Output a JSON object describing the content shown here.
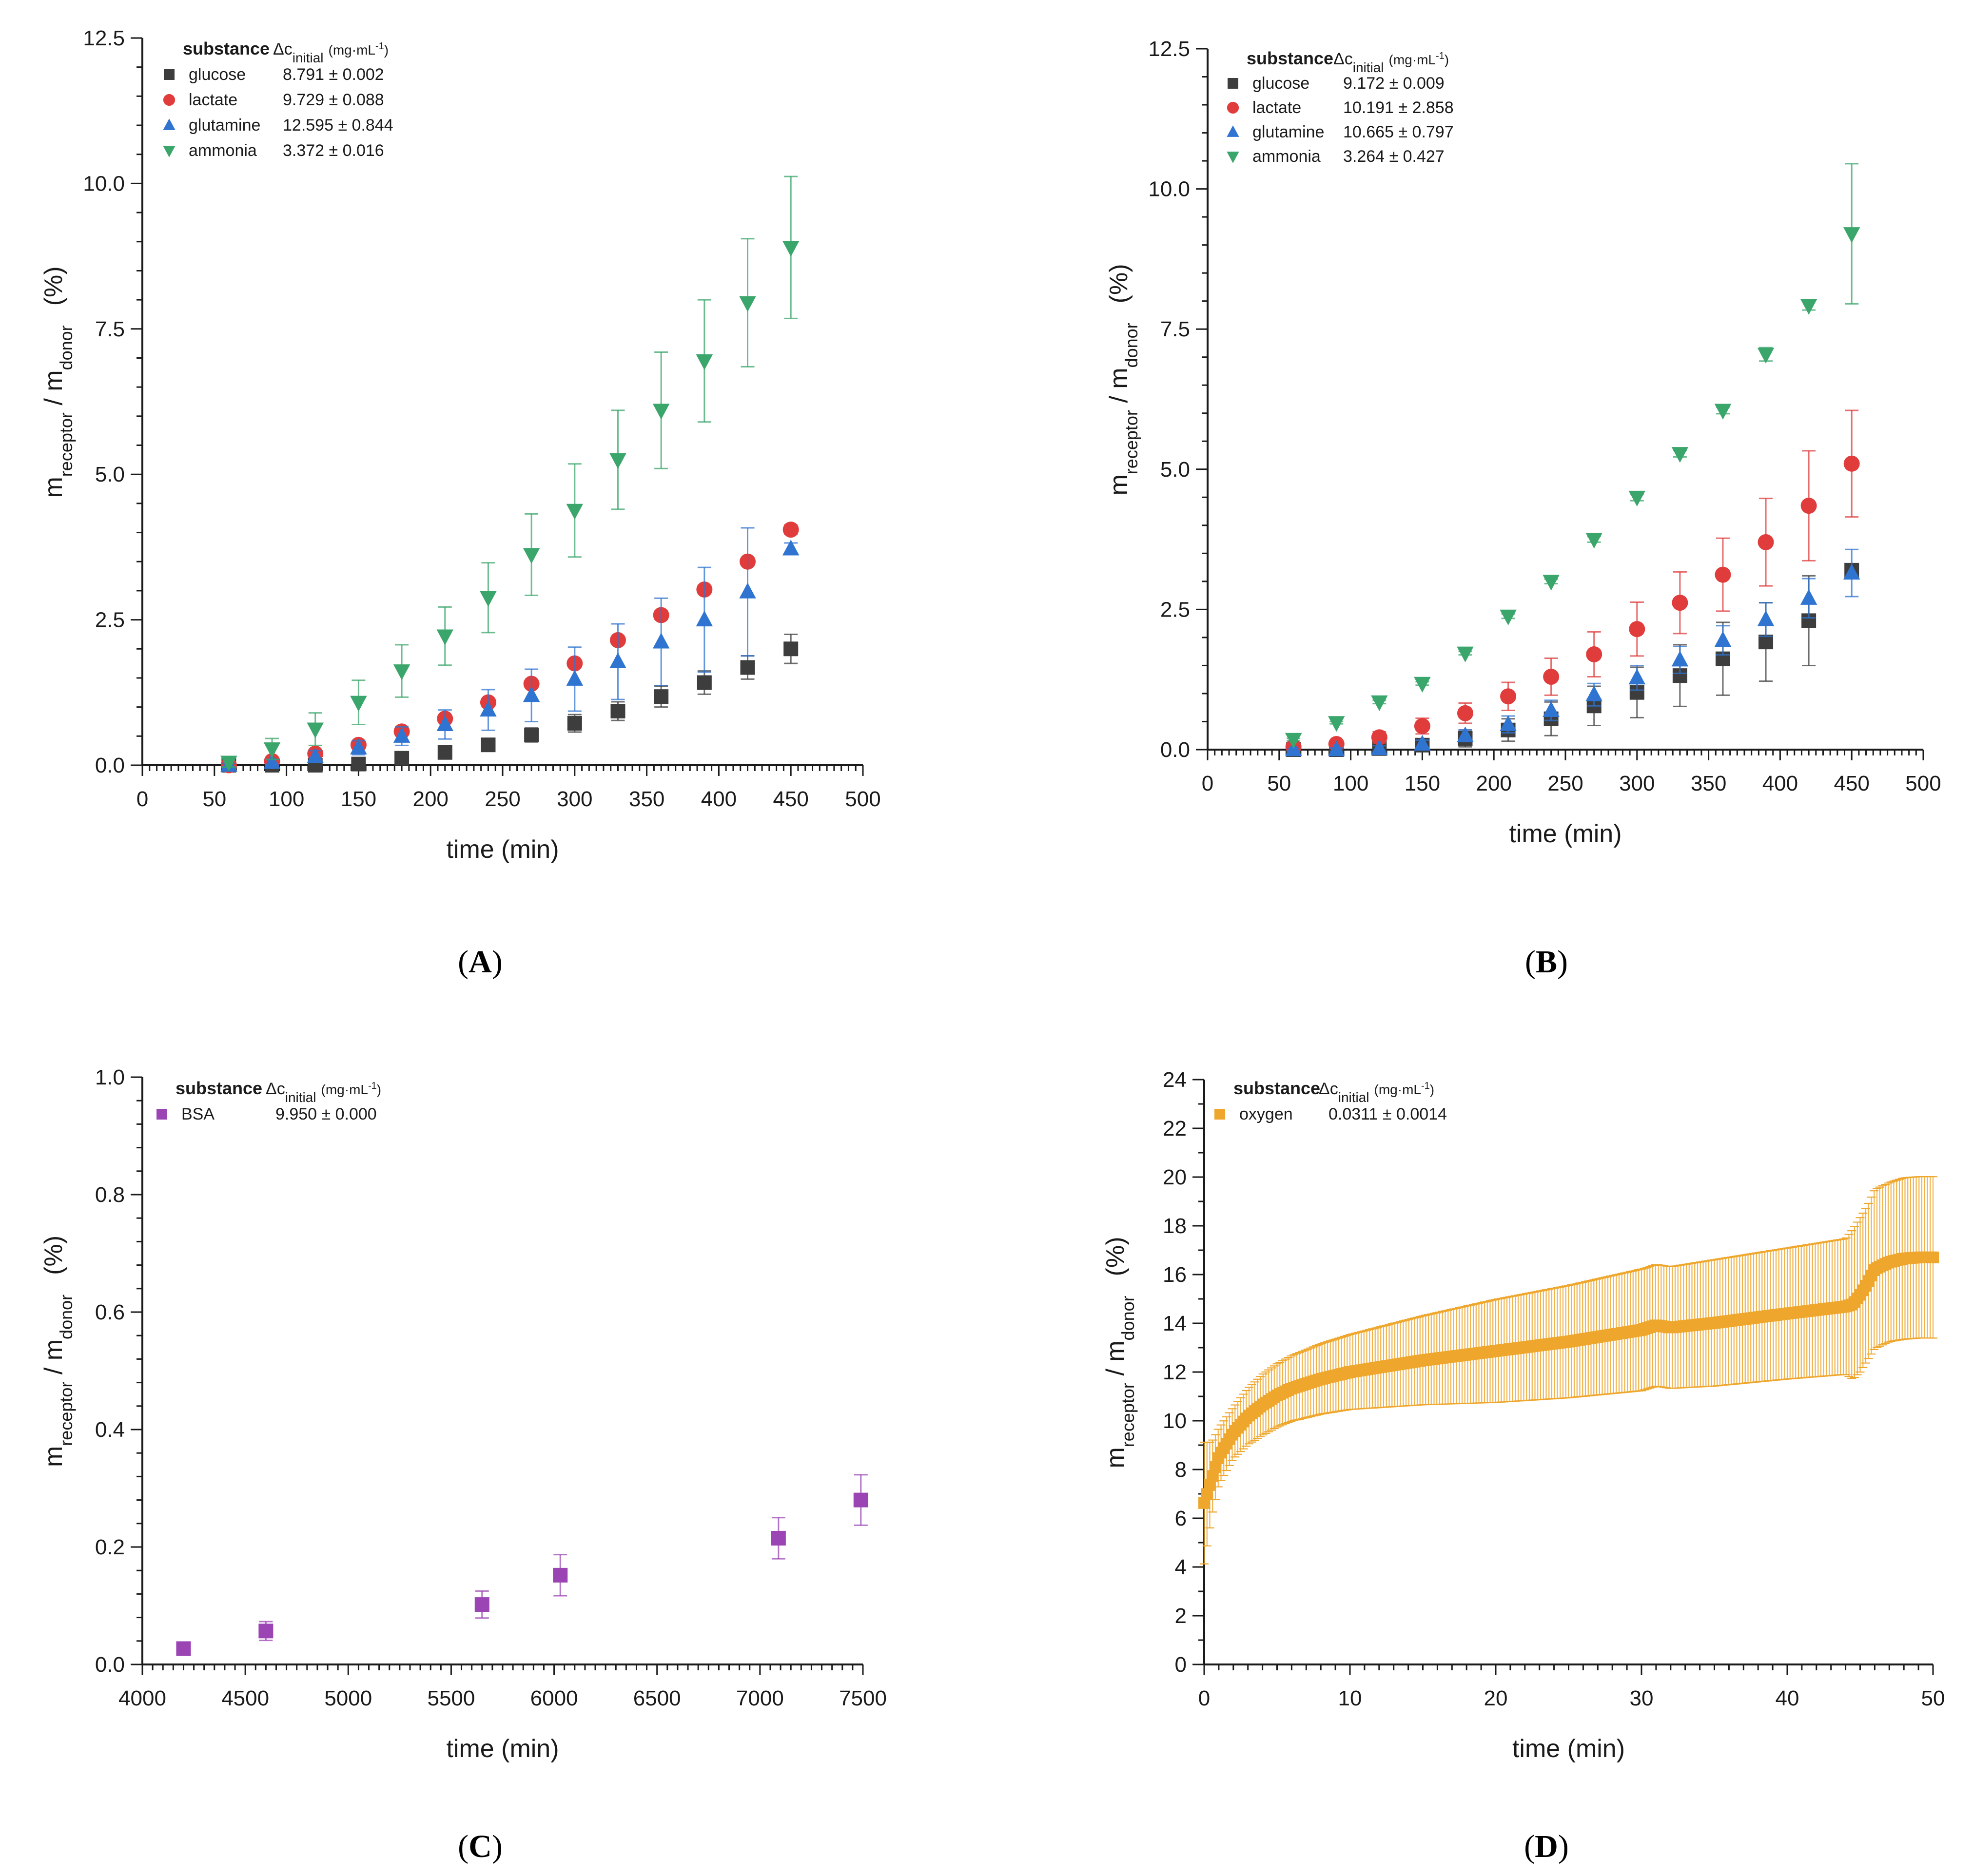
{
  "chart_data": [
    {
      "id": "A",
      "type": "scatter",
      "panel_label_letter": "A",
      "xlabel": "time (min)",
      "ylabel": {
        "m": "m",
        "receptor": "receptor",
        "slash": " / m",
        "donor": "donor",
        "unit": "(%)"
      },
      "xlim": [
        0,
        500
      ],
      "ylim": [
        0,
        12.5
      ],
      "x_ticks": [
        "0",
        "50",
        "100",
        "150",
        "200",
        "250",
        "300",
        "350",
        "400",
        "450",
        "500"
      ],
      "y_ticks": [
        "0.0",
        "2.5",
        "5.0",
        "7.5",
        "10.0",
        "12.5"
      ],
      "legend_header": {
        "substance": "substance",
        "delta_c": "Δc",
        "initial": "initial",
        "unit_open": "(mg·mL",
        "unit_exp": "-1",
        "unit_close": ")"
      },
      "series": [
        {
          "name": "glucose",
          "value": "8.791 ± 0.002",
          "marker": "square",
          "color": "#3d3d3d",
          "x": [
            60,
            90,
            120,
            150,
            180,
            210,
            240,
            270,
            300,
            330,
            360,
            390,
            420,
            450
          ],
          "y": [
            0.0,
            0.0,
            0.0,
            0.02,
            0.12,
            0.22,
            0.35,
            0.52,
            0.72,
            0.93,
            1.18,
            1.42,
            1.68,
            2.0
          ],
          "err": [
            0.03,
            0.03,
            0.03,
            0.04,
            0.06,
            0.07,
            0.1,
            0.12,
            0.15,
            0.16,
            0.18,
            0.2,
            0.2,
            0.25
          ]
        },
        {
          "name": "lactate",
          "value": "9.729 ± 0.088",
          "marker": "circle",
          "color": "#e03c3c",
          "x": [
            60,
            90,
            120,
            150,
            180,
            210,
            240,
            270,
            300,
            330,
            360,
            390,
            420,
            450
          ],
          "y": [
            0.0,
            0.07,
            0.2,
            0.35,
            0.58,
            0.8,
            1.08,
            1.4,
            1.75,
            2.15,
            2.58,
            3.02,
            3.5,
            4.05
          ],
          "err": [
            0.03,
            0.03,
            0.04,
            0.04,
            0.05,
            0.05,
            0.05,
            0.06,
            0.06,
            0.06,
            0.07,
            0.07,
            0.07,
            0.08
          ]
        },
        {
          "name": "glutamine",
          "value": "12.595 ± 0.844",
          "marker": "triangle-up",
          "color": "#2f74d0",
          "x": [
            60,
            90,
            120,
            150,
            180,
            210,
            240,
            270,
            300,
            330,
            360,
            390,
            420,
            450
          ],
          "y": [
            0.0,
            0.05,
            0.15,
            0.3,
            0.5,
            0.7,
            0.95,
            1.2,
            1.48,
            1.78,
            2.12,
            2.5,
            2.98,
            3.72
          ],
          "err": [
            0.03,
            0.05,
            0.1,
            0.12,
            0.16,
            0.25,
            0.35,
            0.45,
            0.55,
            0.65,
            0.75,
            0.9,
            1.1,
            0.1
          ]
        },
        {
          "name": "ammonia",
          "value": "3.372 ± 0.016",
          "marker": "triangle-down",
          "color": "#3ba66b",
          "x": [
            60,
            90,
            120,
            150,
            180,
            210,
            240,
            270,
            300,
            330,
            360,
            390,
            420,
            450
          ],
          "y": [
            0.05,
            0.28,
            0.62,
            1.08,
            1.62,
            2.22,
            2.88,
            3.62,
            4.38,
            5.25,
            6.1,
            6.95,
            7.95,
            8.9
          ],
          "err": [
            0.08,
            0.18,
            0.28,
            0.38,
            0.45,
            0.5,
            0.6,
            0.7,
            0.8,
            0.85,
            1.0,
            1.05,
            1.1,
            1.22
          ]
        }
      ]
    },
    {
      "id": "B",
      "type": "scatter",
      "panel_label_letter": "B",
      "xlabel": "time (min)",
      "ylabel": {
        "m": "m",
        "receptor": "receptor",
        "slash": " / m",
        "donor": "donor",
        "unit": "(%)"
      },
      "xlim": [
        0,
        500
      ],
      "ylim": [
        0,
        12.5
      ],
      "x_ticks": [
        "0",
        "50",
        "100",
        "150",
        "200",
        "250",
        "300",
        "350",
        "400",
        "450",
        "500"
      ],
      "y_ticks": [
        "0.0",
        "2.5",
        "5.0",
        "7.5",
        "10.0",
        "12.5"
      ],
      "legend_header": {
        "substance": "substance",
        "delta_c": "Δc",
        "initial": "initial",
        "unit_open": "(mg·mL",
        "unit_exp": "-1",
        "unit_close": ")"
      },
      "series": [
        {
          "name": "glucose",
          "value": "9.172 ± 0.009",
          "marker": "square",
          "color": "#3d3d3d",
          "x": [
            60,
            90,
            120,
            150,
            180,
            210,
            240,
            270,
            300,
            330,
            360,
            390,
            420,
            450
          ],
          "y": [
            0.0,
            0.0,
            0.02,
            0.08,
            0.2,
            0.35,
            0.55,
            0.78,
            1.02,
            1.32,
            1.62,
            1.92,
            2.3,
            3.2
          ],
          "err": [
            0.02,
            0.03,
            0.05,
            0.08,
            0.15,
            0.2,
            0.3,
            0.35,
            0.45,
            0.55,
            0.65,
            0.7,
            0.8,
            0.1
          ]
        },
        {
          "name": "lactate",
          "value": "10.191 ± 2.858",
          "marker": "circle",
          "color": "#e03c3c",
          "x": [
            60,
            90,
            120,
            150,
            180,
            210,
            240,
            270,
            300,
            330,
            360,
            390,
            420,
            450
          ],
          "y": [
            0.05,
            0.1,
            0.22,
            0.42,
            0.65,
            0.95,
            1.3,
            1.7,
            2.15,
            2.62,
            3.12,
            3.7,
            4.35,
            5.1
          ],
          "err": [
            0.05,
            0.06,
            0.1,
            0.14,
            0.18,
            0.25,
            0.33,
            0.4,
            0.48,
            0.55,
            0.65,
            0.78,
            0.98,
            0.95
          ]
        },
        {
          "name": "glutamine",
          "value": "10.665 ± 0.797",
          "marker": "triangle-up",
          "color": "#2f74d0",
          "x": [
            60,
            90,
            120,
            150,
            180,
            210,
            240,
            270,
            300,
            330,
            360,
            390,
            420,
            450
          ],
          "y": [
            0.0,
            0.0,
            0.02,
            0.1,
            0.25,
            0.45,
            0.7,
            0.98,
            1.28,
            1.6,
            1.95,
            2.32,
            2.7,
            3.15
          ],
          "err": [
            0.02,
            0.03,
            0.05,
            0.07,
            0.1,
            0.15,
            0.18,
            0.2,
            0.22,
            0.24,
            0.26,
            0.3,
            0.35,
            0.42
          ]
        },
        {
          "name": "ammonia",
          "value": "3.264 ± 0.427",
          "marker": "triangle-down",
          "color": "#3ba66b",
          "x": [
            60,
            90,
            120,
            150,
            180,
            210,
            240,
            270,
            300,
            330,
            360,
            390,
            420,
            450
          ],
          "y": [
            0.18,
            0.48,
            0.85,
            1.18,
            1.72,
            2.38,
            3.0,
            3.75,
            4.5,
            5.28,
            6.05,
            7.05,
            7.92,
            9.2
          ],
          "err": [
            0.02,
            0.02,
            0.03,
            0.03,
            0.03,
            0.04,
            0.04,
            0.05,
            0.06,
            0.06,
            0.06,
            0.12,
            0.08,
            1.25
          ]
        }
      ]
    },
    {
      "id": "C",
      "type": "scatter",
      "panel_label_letter": "C",
      "xlabel": "time (min)",
      "ylabel": {
        "m": "m",
        "receptor": "receptor",
        "slash": " / m",
        "donor": "donor",
        "unit": "(%)"
      },
      "xlim": [
        4000,
        7500
      ],
      "ylim": [
        0,
        1.0
      ],
      "x_ticks": [
        "4000",
        "4500",
        "5000",
        "5500",
        "6000",
        "6500",
        "7000",
        "7500"
      ],
      "y_ticks": [
        "0.0",
        "0.2",
        "0.4",
        "0.6",
        "0.8",
        "1.0"
      ],
      "legend_header": {
        "substance": "substance",
        "delta_c": "Δc",
        "initial": "initial",
        "unit_open": "(mg·mL",
        "unit_exp": "-1",
        "unit_close": ")"
      },
      "series": [
        {
          "name": "BSA",
          "value": "9.950 ± 0.000",
          "marker": "square",
          "color": "#9b45b5",
          "x": [
            4200,
            4600,
            5650,
            6030,
            7090,
            7490
          ],
          "y": [
            0.027,
            0.057,
            0.102,
            0.152,
            0.215,
            0.28
          ],
          "err": [
            0.005,
            0.016,
            0.023,
            0.035,
            0.035,
            0.043
          ]
        }
      ]
    },
    {
      "id": "D",
      "type": "scatter",
      "panel_label_letter": "D",
      "xlabel": "time (min)",
      "ylabel": {
        "m": "m",
        "receptor": "receptor",
        "slash": " / m",
        "donor": "donor",
        "unit": "(%)"
      },
      "xlim": [
        0,
        50
      ],
      "ylim": [
        0,
        25
      ],
      "x_ticks": [
        "0",
        "10",
        "20",
        "30",
        "40",
        "50"
      ],
      "y_ticks": [
        "0",
        "2",
        "4",
        "6",
        "8",
        "10",
        "12",
        "14",
        "16",
        "18",
        "20",
        "22",
        "24"
      ],
      "legend_header": {
        "substance": "substance",
        "delta_c": "Δc",
        "initial": "initial",
        "unit_open": "(mg·mL",
        "unit_exp": "-1",
        "unit_close": ")"
      },
      "series": [
        {
          "name": "oxygen",
          "value": "0.0311 ± 0.0014",
          "marker": "square",
          "color": "#eea62c",
          "x": [
            0,
            0.5,
            1,
            2,
            3,
            4,
            5,
            6,
            8,
            10,
            15,
            20,
            25,
            30,
            31,
            32,
            35,
            40,
            44,
            44.5,
            45,
            45.5,
            46,
            47,
            48,
            49,
            50
          ],
          "y": [
            6.9,
            7.9,
            8.9,
            9.9,
            10.6,
            11.1,
            11.5,
            11.8,
            12.2,
            12.5,
            13.0,
            13.4,
            13.8,
            14.3,
            14.5,
            14.4,
            14.6,
            15.0,
            15.3,
            15.4,
            15.8,
            16.3,
            16.9,
            17.2,
            17.35,
            17.4,
            17.4
          ],
          "err": [
            2.6,
            1.6,
            1.2,
            1.1,
            1.2,
            1.3,
            1.35,
            1.4,
            1.5,
            1.6,
            1.9,
            2.2,
            2.4,
            2.6,
            2.6,
            2.6,
            2.7,
            2.8,
            2.9,
            3.2,
            3.3,
            3.3,
            3.4,
            3.4,
            3.45,
            3.45,
            3.45
          ]
        }
      ]
    }
  ]
}
